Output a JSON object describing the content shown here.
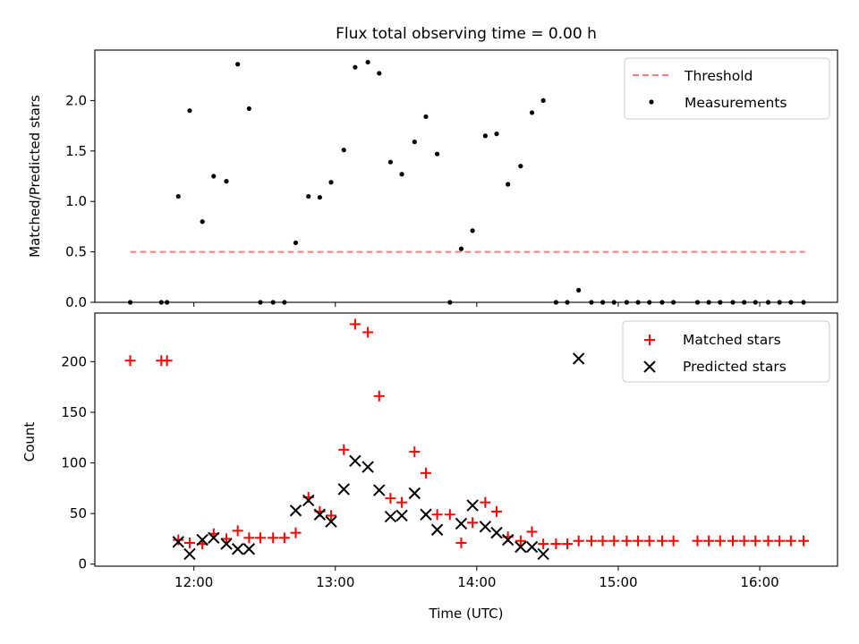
{
  "title": "Flux total observing time = 0.00 h",
  "xlabel": "Time (UTC)",
  "xtick_labels": [
    "12:00",
    "13:00",
    "14:00",
    "15:00",
    "16:00"
  ],
  "colors": {
    "threshold": "#ff7f7f",
    "measurement": "#000000",
    "matched": "#ff0000",
    "predicted": "#000000"
  },
  "chart_data": [
    {
      "type": "scatter",
      "panel": "top",
      "title": "Flux total observing time = 0.00 h",
      "ylabel": "Matched/Predicted stars",
      "xlim": [
        11.3,
        16.55
      ],
      "ylim": [
        0,
        2.5
      ],
      "ytick_labels": [
        "0.0",
        "0.5",
        "1.0",
        "1.5",
        "2.0"
      ],
      "ytick_values": [
        0,
        0.5,
        1.0,
        1.5,
        2.0
      ],
      "legend": [
        "Threshold",
        "Measurements"
      ],
      "threshold": {
        "name": "Threshold",
        "value": 0.5,
        "x_range": [
          11.55,
          16.32
        ]
      },
      "series": [
        {
          "name": "Measurements",
          "x": [
            11.55,
            11.77,
            11.81,
            11.89,
            11.97,
            12.06,
            12.14,
            12.23,
            12.31,
            12.39,
            12.47,
            12.56,
            12.64,
            12.72,
            12.81,
            12.89,
            12.97,
            13.06,
            13.14,
            13.23,
            13.31,
            13.39,
            13.47,
            13.56,
            13.64,
            13.72,
            13.81,
            13.89,
            13.97,
            14.06,
            14.14,
            14.22,
            14.31,
            14.39,
            14.47,
            14.56,
            14.64,
            14.72,
            14.81,
            14.89,
            14.97,
            15.06,
            15.14,
            15.22,
            15.31,
            15.39,
            15.56,
            15.64,
            15.72,
            15.81,
            15.89,
            15.97,
            16.06,
            16.14,
            16.22,
            16.31
          ],
          "y": [
            0,
            0,
            0,
            1.05,
            1.9,
            0.8,
            1.25,
            1.2,
            2.36,
            1.92,
            0,
            0,
            0,
            0.59,
            1.05,
            1.04,
            1.19,
            1.51,
            2.33,
            2.38,
            2.27,
            1.39,
            1.27,
            1.59,
            1.84,
            1.47,
            0,
            0.53,
            0.71,
            1.65,
            1.67,
            1.17,
            1.35,
            1.88,
            2.0,
            0,
            0,
            0.12,
            0,
            0,
            0,
            0,
            0,
            0,
            0,
            0,
            0,
            0,
            0,
            0,
            0,
            0,
            0,
            0,
            0,
            0
          ]
        }
      ]
    },
    {
      "type": "scatter",
      "panel": "bottom",
      "ylabel": "Count",
      "xlabel": "Time (UTC)",
      "xlim": [
        11.3,
        16.55
      ],
      "ylim": [
        -2,
        248
      ],
      "ytick_labels": [
        "0",
        "50",
        "100",
        "150",
        "200"
      ],
      "ytick_values": [
        0,
        50,
        100,
        150,
        200
      ],
      "legend": [
        "Matched stars",
        "Predicted stars"
      ],
      "series": [
        {
          "name": "Matched stars",
          "x": [
            11.55,
            11.77,
            11.81,
            11.89,
            11.97,
            12.06,
            12.14,
            12.23,
            12.31,
            12.39,
            12.47,
            12.56,
            12.64,
            12.72,
            12.81,
            12.89,
            12.97,
            13.06,
            13.14,
            13.23,
            13.31,
            13.39,
            13.47,
            13.56,
            13.64,
            13.72,
            13.81,
            13.89,
            13.97,
            14.06,
            14.14,
            14.22,
            14.31,
            14.39,
            14.47,
            14.56,
            14.64,
            14.72,
            14.81,
            14.89,
            14.97,
            15.06,
            15.14,
            15.22,
            15.31,
            15.39,
            15.56,
            15.64,
            15.72,
            15.81,
            15.89,
            15.97,
            16.06,
            16.14,
            16.22,
            16.31
          ],
          "y": [
            201,
            201,
            201,
            24,
            21,
            20,
            30,
            25,
            33,
            26,
            26,
            26,
            26,
            31,
            66,
            52,
            48,
            113,
            237,
            229,
            166,
            65,
            61,
            111,
            90,
            49,
            49,
            21,
            41,
            61,
            52,
            27,
            23,
            32,
            20,
            20,
            20,
            23,
            23,
            23,
            23,
            23,
            23,
            23,
            23,
            23,
            23,
            23,
            23,
            23,
            23,
            23,
            23,
            23,
            23,
            23
          ]
        },
        {
          "name": "Predicted stars",
          "x": [
            11.89,
            11.97,
            12.06,
            12.14,
            12.23,
            12.31,
            12.39,
            12.72,
            12.81,
            12.89,
            12.97,
            13.06,
            13.14,
            13.23,
            13.31,
            13.39,
            13.47,
            13.56,
            13.64,
            13.72,
            13.89,
            13.97,
            14.06,
            14.14,
            14.22,
            14.31,
            14.39,
            14.47,
            14.72
          ],
          "y": [
            22,
            10,
            24,
            26,
            20,
            15,
            15,
            53,
            63,
            49,
            42,
            74,
            102,
            96,
            73,
            47,
            48,
            70,
            49,
            34,
            40,
            58,
            37,
            31,
            24,
            17,
            17,
            10,
            203
          ]
        }
      ]
    }
  ]
}
